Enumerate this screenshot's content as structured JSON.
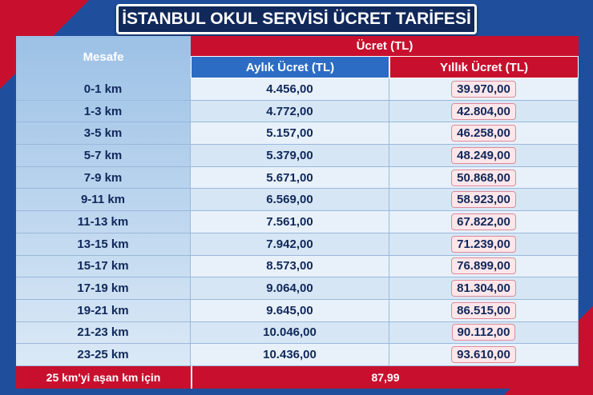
{
  "title": "İSTANBUL OKUL SERVİSİ ÜCRET TARİFESİ",
  "table": {
    "header": {
      "distance": "Mesafe",
      "fee": "Ücret (TL)",
      "monthly": "Aylık Ücret (TL)",
      "yearly": "Yıllık Ücret (TL)"
    },
    "rows": [
      [
        "0-1 km",
        "4.456,00",
        "39.970,00"
      ],
      [
        "1-3 km",
        "4.772,00",
        "42.804,00"
      ],
      [
        "3-5 km",
        "5.157,00",
        "46.258,00"
      ],
      [
        "5-7 km",
        "5.379,00",
        "48.249,00"
      ],
      [
        "7-9 km",
        "5.671,00",
        "50.868,00"
      ],
      [
        "9-11 km",
        "6.569,00",
        "58.923,00"
      ],
      [
        "11-13 km",
        "7.561,00",
        "67.822,00"
      ],
      [
        "13-15 km",
        "7.942,00",
        "71.239,00"
      ],
      [
        "15-17 km",
        "8.573,00",
        "76.899,00"
      ],
      [
        "17-19 km",
        "9.064,00",
        "81.304,00"
      ],
      [
        "19-21 km",
        "9.645,00",
        "86.515,00"
      ],
      [
        "21-23 km",
        "10.046,00",
        "90.112,00"
      ],
      [
        "23-25 km",
        "10.436,00",
        "93.610,00"
      ]
    ]
  },
  "footer": {
    "label": "25 km'yi aşan km için",
    "value": "87,99"
  }
}
